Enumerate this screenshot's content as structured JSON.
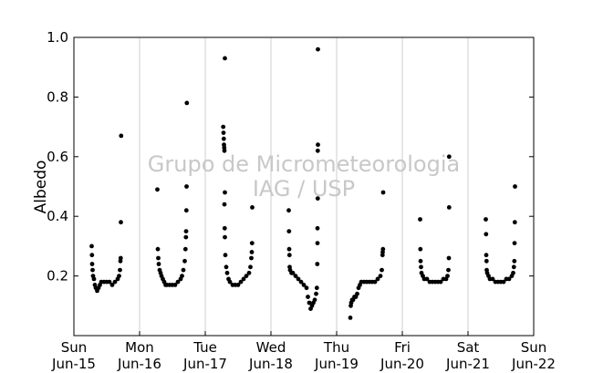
{
  "chart_data": {
    "type": "scatter",
    "title": "",
    "xlabel": "",
    "ylabel": "Albedo",
    "xlim": [
      "Jun-15 00:00",
      "Jun-22 00:00"
    ],
    "ylim": [
      0.0,
      1.0
    ],
    "yticks": [
      {
        "value": 0.2,
        "label": "0.2"
      },
      {
        "value": 0.4,
        "label": "0.4"
      },
      {
        "value": 0.6,
        "label": "0.6"
      },
      {
        "value": 0.8,
        "label": "0.8"
      },
      {
        "value": 1.0,
        "label": "1.0"
      }
    ],
    "xticks": [
      {
        "day": "Sun",
        "date": "Jun-15"
      },
      {
        "day": "Mon",
        "date": "Jun-16"
      },
      {
        "day": "Tue",
        "date": "Jun-17"
      },
      {
        "day": "Wed",
        "date": "Jun-18"
      },
      {
        "day": "Thu",
        "date": "Jun-19"
      },
      {
        "day": "Fri",
        "date": "Jun-20"
      },
      {
        "day": "Sat",
        "date": "Jun-21"
      },
      {
        "day": "Sun",
        "date": "Jun-22"
      }
    ],
    "grid": "vertical",
    "watermark": [
      "Grupo de Micrometeorologia",
      "IAG / USP"
    ],
    "series": [
      {
        "marker_color": "#000000",
        "points": [
          {
            "x": "Jun-15 06:30",
            "y": 0.3
          },
          {
            "x": "Jun-15 06:35",
            "y": 0.27
          },
          {
            "x": "Jun-15 06:40",
            "y": 0.24
          },
          {
            "x": "Jun-15 06:50",
            "y": 0.22
          },
          {
            "x": "Jun-15 07:00",
            "y": 0.2
          },
          {
            "x": "Jun-15 07:20",
            "y": 0.19
          },
          {
            "x": "Jun-15 07:40",
            "y": 0.17
          },
          {
            "x": "Jun-15 08:00",
            "y": 0.16
          },
          {
            "x": "Jun-15 08:30",
            "y": 0.15
          },
          {
            "x": "Jun-15 09:00",
            "y": 0.16
          },
          {
            "x": "Jun-15 09:30",
            "y": 0.17
          },
          {
            "x": "Jun-15 10:00",
            "y": 0.18
          },
          {
            "x": "Jun-15 11:00",
            "y": 0.18
          },
          {
            "x": "Jun-15 12:00",
            "y": 0.18
          },
          {
            "x": "Jun-15 13:00",
            "y": 0.18
          },
          {
            "x": "Jun-15 14:00",
            "y": 0.17
          },
          {
            "x": "Jun-15 15:00",
            "y": 0.18
          },
          {
            "x": "Jun-15 16:00",
            "y": 0.19
          },
          {
            "x": "Jun-15 16:30",
            "y": 0.2
          },
          {
            "x": "Jun-15 16:50",
            "y": 0.22
          },
          {
            "x": "Jun-15 17:00",
            "y": 0.25
          },
          {
            "x": "Jun-15 17:05",
            "y": 0.26
          },
          {
            "x": "Jun-15 17:10",
            "y": 0.38
          },
          {
            "x": "Jun-15 17:15",
            "y": 0.67
          },
          {
            "x": "Jun-16 06:30",
            "y": 0.49
          },
          {
            "x": "Jun-16 06:40",
            "y": 0.29
          },
          {
            "x": "Jun-16 06:50",
            "y": 0.26
          },
          {
            "x": "Jun-16 07:00",
            "y": 0.24
          },
          {
            "x": "Jun-16 07:20",
            "y": 0.22
          },
          {
            "x": "Jun-16 07:40",
            "y": 0.21
          },
          {
            "x": "Jun-16 08:00",
            "y": 0.2
          },
          {
            "x": "Jun-16 08:30",
            "y": 0.19
          },
          {
            "x": "Jun-16 09:00",
            "y": 0.18
          },
          {
            "x": "Jun-16 09:30",
            "y": 0.17
          },
          {
            "x": "Jun-16 10:00",
            "y": 0.17
          },
          {
            "x": "Jun-16 11:00",
            "y": 0.17
          },
          {
            "x": "Jun-16 12:00",
            "y": 0.17
          },
          {
            "x": "Jun-16 13:00",
            "y": 0.17
          },
          {
            "x": "Jun-16 14:00",
            "y": 0.18
          },
          {
            "x": "Jun-16 15:00",
            "y": 0.19
          },
          {
            "x": "Jun-16 15:30",
            "y": 0.2
          },
          {
            "x": "Jun-16 16:00",
            "y": 0.22
          },
          {
            "x": "Jun-16 16:30",
            "y": 0.25
          },
          {
            "x": "Jun-16 16:45",
            "y": 0.29
          },
          {
            "x": "Jun-16 16:55",
            "y": 0.33
          },
          {
            "x": "Jun-16 17:00",
            "y": 0.35
          },
          {
            "x": "Jun-16 17:05",
            "y": 0.42
          },
          {
            "x": "Jun-16 17:10",
            "y": 0.5
          },
          {
            "x": "Jun-16 17:15",
            "y": 0.78
          },
          {
            "x": "Jun-17 06:35",
            "y": 0.7
          },
          {
            "x": "Jun-17 06:40",
            "y": 0.68
          },
          {
            "x": "Jun-17 06:45",
            "y": 0.66
          },
          {
            "x": "Jun-17 06:50",
            "y": 0.64
          },
          {
            "x": "Jun-17 06:55",
            "y": 0.63
          },
          {
            "x": "Jun-17 07:00",
            "y": 0.62
          },
          {
            "x": "Jun-17 07:10",
            "y": 0.93
          },
          {
            "x": "Jun-17 07:00",
            "y": 0.44
          },
          {
            "x": "Jun-17 07:10",
            "y": 0.48
          },
          {
            "x": "Jun-17 07:05",
            "y": 0.36
          },
          {
            "x": "Jun-17 07:10",
            "y": 0.33
          },
          {
            "x": "Jun-17 07:20",
            "y": 0.27
          },
          {
            "x": "Jun-17 07:40",
            "y": 0.23
          },
          {
            "x": "Jun-17 08:00",
            "y": 0.21
          },
          {
            "x": "Jun-17 08:30",
            "y": 0.19
          },
          {
            "x": "Jun-17 09:00",
            "y": 0.18
          },
          {
            "x": "Jun-17 10:00",
            "y": 0.17
          },
          {
            "x": "Jun-17 11:00",
            "y": 0.17
          },
          {
            "x": "Jun-17 12:00",
            "y": 0.17
          },
          {
            "x": "Jun-17 13:00",
            "y": 0.18
          },
          {
            "x": "Jun-17 14:00",
            "y": 0.19
          },
          {
            "x": "Jun-17 15:00",
            "y": 0.2
          },
          {
            "x": "Jun-17 16:00",
            "y": 0.21
          },
          {
            "x": "Jun-17 16:30",
            "y": 0.23
          },
          {
            "x": "Jun-17 16:50",
            "y": 0.26
          },
          {
            "x": "Jun-17 17:00",
            "y": 0.28
          },
          {
            "x": "Jun-17 17:05",
            "y": 0.31
          },
          {
            "x": "Jun-17 17:10",
            "y": 0.43
          },
          {
            "x": "Jun-18 06:30",
            "y": 0.42
          },
          {
            "x": "Jun-18 06:35",
            "y": 0.35
          },
          {
            "x": "Jun-18 06:40",
            "y": 0.29
          },
          {
            "x": "Jun-18 06:45",
            "y": 0.27
          },
          {
            "x": "Jun-18 06:50",
            "y": 0.23
          },
          {
            "x": "Jun-18 07:00",
            "y": 0.22
          },
          {
            "x": "Jun-18 07:30",
            "y": 0.21
          },
          {
            "x": "Jun-18 08:00",
            "y": 0.21
          },
          {
            "x": "Jun-18 09:00",
            "y": 0.2
          },
          {
            "x": "Jun-18 10:00",
            "y": 0.19
          },
          {
            "x": "Jun-18 11:00",
            "y": 0.18
          },
          {
            "x": "Jun-18 12:00",
            "y": 0.17
          },
          {
            "x": "Jun-18 13:00",
            "y": 0.16
          },
          {
            "x": "Jun-18 13:30",
            "y": 0.13
          },
          {
            "x": "Jun-18 14:00",
            "y": 0.11
          },
          {
            "x": "Jun-18 14:30",
            "y": 0.09
          },
          {
            "x": "Jun-18 15:00",
            "y": 0.1
          },
          {
            "x": "Jun-18 15:30",
            "y": 0.11
          },
          {
            "x": "Jun-18 16:00",
            "y": 0.12
          },
          {
            "x": "Jun-18 16:30",
            "y": 0.14
          },
          {
            "x": "Jun-18 16:45",
            "y": 0.16
          },
          {
            "x": "Jun-18 16:55",
            "y": 0.24
          },
          {
            "x": "Jun-18 17:00",
            "y": 0.31
          },
          {
            "x": "Jun-18 17:00",
            "y": 0.36
          },
          {
            "x": "Jun-18 17:05",
            "y": 0.46
          },
          {
            "x": "Jun-18 17:05",
            "y": 0.62
          },
          {
            "x": "Jun-18 17:10",
            "y": 0.64
          },
          {
            "x": "Jun-18 17:10",
            "y": 0.96
          },
          {
            "x": "Jun-19 05:00",
            "y": 0.06
          },
          {
            "x": "Jun-19 05:10",
            "y": 0.1
          },
          {
            "x": "Jun-19 05:20",
            "y": 0.11
          },
          {
            "x": "Jun-19 05:40",
            "y": 0.12
          },
          {
            "x": "Jun-19 06:00",
            "y": 0.12
          },
          {
            "x": "Jun-19 06:30",
            "y": 0.13
          },
          {
            "x": "Jun-19 07:00",
            "y": 0.13
          },
          {
            "x": "Jun-19 07:30",
            "y": 0.14
          },
          {
            "x": "Jun-19 08:00",
            "y": 0.16
          },
          {
            "x": "Jun-19 08:30",
            "y": 0.17
          },
          {
            "x": "Jun-19 09:00",
            "y": 0.18
          },
          {
            "x": "Jun-19 10:00",
            "y": 0.18
          },
          {
            "x": "Jun-19 11:00",
            "y": 0.18
          },
          {
            "x": "Jun-19 12:00",
            "y": 0.18
          },
          {
            "x": "Jun-19 13:00",
            "y": 0.18
          },
          {
            "x": "Jun-19 14:00",
            "y": 0.18
          },
          {
            "x": "Jun-19 15:00",
            "y": 0.19
          },
          {
            "x": "Jun-19 16:00",
            "y": 0.2
          },
          {
            "x": "Jun-19 16:30",
            "y": 0.22
          },
          {
            "x": "Jun-19 16:45",
            "y": 0.27
          },
          {
            "x": "Jun-19 16:50",
            "y": 0.28
          },
          {
            "x": "Jun-19 16:55",
            "y": 0.29
          },
          {
            "x": "Jun-19 17:00",
            "y": 0.48
          },
          {
            "x": "Jun-20 06:30",
            "y": 0.39
          },
          {
            "x": "Jun-20 06:35",
            "y": 0.29
          },
          {
            "x": "Jun-20 06:40",
            "y": 0.25
          },
          {
            "x": "Jun-20 06:50",
            "y": 0.23
          },
          {
            "x": "Jun-20 07:00",
            "y": 0.21
          },
          {
            "x": "Jun-20 07:30",
            "y": 0.2
          },
          {
            "x": "Jun-20 08:00",
            "y": 0.19
          },
          {
            "x": "Jun-20 09:00",
            "y": 0.19
          },
          {
            "x": "Jun-20 10:00",
            "y": 0.18
          },
          {
            "x": "Jun-20 11:00",
            "y": 0.18
          },
          {
            "x": "Jun-20 12:00",
            "y": 0.18
          },
          {
            "x": "Jun-20 13:00",
            "y": 0.18
          },
          {
            "x": "Jun-20 14:00",
            "y": 0.18
          },
          {
            "x": "Jun-20 15:00",
            "y": 0.19
          },
          {
            "x": "Jun-20 16:00",
            "y": 0.19
          },
          {
            "x": "Jun-20 16:30",
            "y": 0.2
          },
          {
            "x": "Jun-20 16:50",
            "y": 0.22
          },
          {
            "x": "Jun-20 17:00",
            "y": 0.26
          },
          {
            "x": "Jun-20 17:05",
            "y": 0.43
          },
          {
            "x": "Jun-20 17:05",
            "y": 0.6
          },
          {
            "x": "Jun-21 06:30",
            "y": 0.39
          },
          {
            "x": "Jun-21 06:35",
            "y": 0.34
          },
          {
            "x": "Jun-21 06:40",
            "y": 0.27
          },
          {
            "x": "Jun-21 06:45",
            "y": 0.25
          },
          {
            "x": "Jun-21 06:50",
            "y": 0.22
          },
          {
            "x": "Jun-21 07:00",
            "y": 0.21
          },
          {
            "x": "Jun-21 07:30",
            "y": 0.2
          },
          {
            "x": "Jun-21 08:00",
            "y": 0.19
          },
          {
            "x": "Jun-21 09:00",
            "y": 0.19
          },
          {
            "x": "Jun-21 10:00",
            "y": 0.18
          },
          {
            "x": "Jun-21 11:00",
            "y": 0.18
          },
          {
            "x": "Jun-21 12:00",
            "y": 0.18
          },
          {
            "x": "Jun-21 13:00",
            "y": 0.18
          },
          {
            "x": "Jun-21 14:00",
            "y": 0.19
          },
          {
            "x": "Jun-21 15:00",
            "y": 0.19
          },
          {
            "x": "Jun-21 16:00",
            "y": 0.2
          },
          {
            "x": "Jun-21 16:30",
            "y": 0.21
          },
          {
            "x": "Jun-21 16:45",
            "y": 0.23
          },
          {
            "x": "Jun-21 16:55",
            "y": 0.25
          },
          {
            "x": "Jun-21 17:00",
            "y": 0.31
          },
          {
            "x": "Jun-21 17:05",
            "y": 0.38
          },
          {
            "x": "Jun-21 17:10",
            "y": 0.5
          }
        ]
      }
    ]
  }
}
